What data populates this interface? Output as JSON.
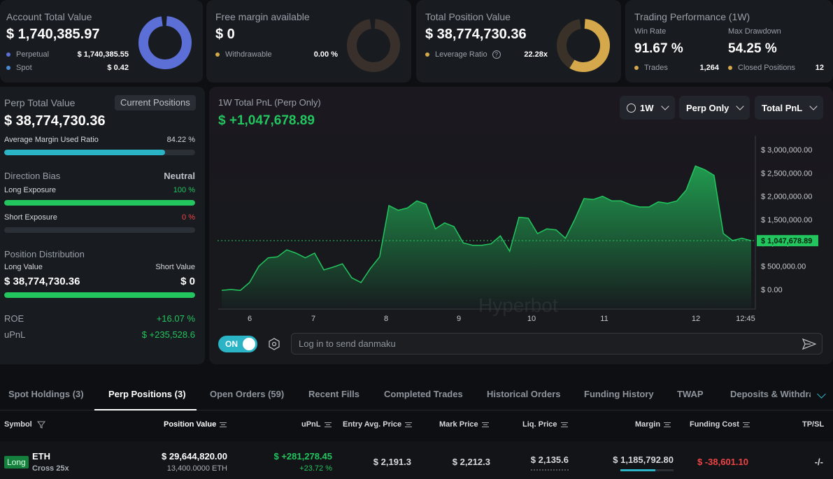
{
  "account": {
    "title": "Account Total Value",
    "value": "$ 1,740,385.97",
    "perp_label": "Perpetual",
    "perp_value": "$ 1,740,385.55",
    "spot_label": "Spot",
    "spot_value": "$ 0.42",
    "ring_color": "#5b6fd6"
  },
  "margin": {
    "title": "Free margin available",
    "value": "$ 0",
    "withdrawable_label": "Withdrawable",
    "withdrawable_value": "0.00 %"
  },
  "position": {
    "title": "Total Position Value",
    "value": "$ 38,774,730.36",
    "leverage_label": "Leverage Ratio",
    "leverage_value": "22.28x",
    "ring_color": "#d4a84b"
  },
  "performance": {
    "title": "Trading Performance (1W)",
    "win_rate_label": "Win Rate",
    "win_rate": "91.67 %",
    "drawdown_label": "Max Drawdown",
    "drawdown": "54.25 %",
    "trades_label": "Trades",
    "trades": "1,264",
    "closed_label": "Closed Positions",
    "closed": "12"
  },
  "perp": {
    "title": "Perp Total Value",
    "button": "Current Positions",
    "value": "$ 38,774,730.36",
    "margin_ratio_label": "Average Margin Used Ratio",
    "margin_ratio": "84.22 %",
    "margin_ratio_fraction": 0.8422,
    "bias_label": "Direction Bias",
    "bias_value": "Neutral",
    "long_label": "Long Exposure",
    "long_value": "100 %",
    "long_fraction": 1.0,
    "short_label": "Short Exposure",
    "short_value": "0 %",
    "short_fraction": 0.0,
    "dist_label": "Position Distribution",
    "long_val_label": "Long Value",
    "short_val_label": "Short Value",
    "long_val": "$ 38,774,730.36",
    "short_val": "$ 0",
    "dist_long_fraction": 1.0,
    "roe_label": "ROE",
    "roe": "+16.07 %",
    "upnl_label": "uPnL",
    "upnl": "$ +235,528.6"
  },
  "chart_panel": {
    "title": "1W Total PnL (Perp Only)",
    "value": "$ +1,047,678.89",
    "period": "1W",
    "scope": "Perp Only",
    "metric": "Total PnL",
    "watermark": "Hyperbot",
    "current_label": "$ 1,047,678.89",
    "toggle_label": "ON",
    "danmaku_placeholder": "Log in to send danmaku"
  },
  "chart_data": {
    "type": "area",
    "x_ticks": [
      "6",
      "7",
      "8",
      "9",
      "10",
      "11",
      "12",
      "12:45"
    ],
    "y_ticks": [
      "$ 3,000,000.00",
      "$ 2,500,000.00",
      "$ 2,000,000.00",
      "$ 1,500,000.00",
      "$ 1,000,000.00",
      "$ 500,000.00",
      "$ 0.00"
    ],
    "ylim": [
      0,
      3000000
    ],
    "current_value": 1047678.89,
    "values": [
      -20000,
      0,
      -20000,
      150000,
      500000,
      680000,
      700000,
      850000,
      780000,
      680000,
      780000,
      420000,
      480000,
      550000,
      250000,
      150000,
      450000,
      700000,
      1800000,
      1700000,
      1750000,
      1900000,
      1830000,
      1300000,
      1430000,
      1350000,
      1000000,
      950000,
      950000,
      980000,
      1150000,
      820000,
      1550000,
      1530000,
      1200000,
      1300000,
      1280000,
      1100000,
      1500000,
      1950000,
      1930000,
      2000000,
      1900000,
      1900000,
      1820000,
      1770000,
      1770000,
      1880000,
      1850000,
      1900000,
      2130000,
      2650000,
      2570000,
      2450000,
      1200000,
      1050000,
      1100000,
      1047678.89
    ],
    "line_color": "#22c55e",
    "grid": false
  },
  "tabs": [
    "Spot Holdings (3)",
    "Perp Positions (3)",
    "Open Orders (59)",
    "Recent Fills",
    "Completed Trades",
    "Historical Orders",
    "Funding History",
    "TWAP",
    "Deposits & Withdra"
  ],
  "table": {
    "headers": [
      "Symbol",
      "Position Value",
      "uPnL",
      "Entry Avg. Price",
      "Mark Price",
      "Liq. Price",
      "Margin",
      "Funding Cost",
      "TP/SL"
    ],
    "row": {
      "side": "Long",
      "symbol": "ETH",
      "mode": "Cross 25x",
      "position_value": "$ 29,644,820.00",
      "position_size": "13,400.0000 ETH",
      "upnl": "$ +281,278.45",
      "upnl_pct": "+23.72 %",
      "entry": "$ 2,191.3",
      "mark": "$ 2,212.3",
      "liq": "$ 2,135.6",
      "margin": "$ 1,185,792.80",
      "margin_fraction": 0.66,
      "funding": "$ -38,601.10",
      "tpsl": "-/-"
    }
  }
}
